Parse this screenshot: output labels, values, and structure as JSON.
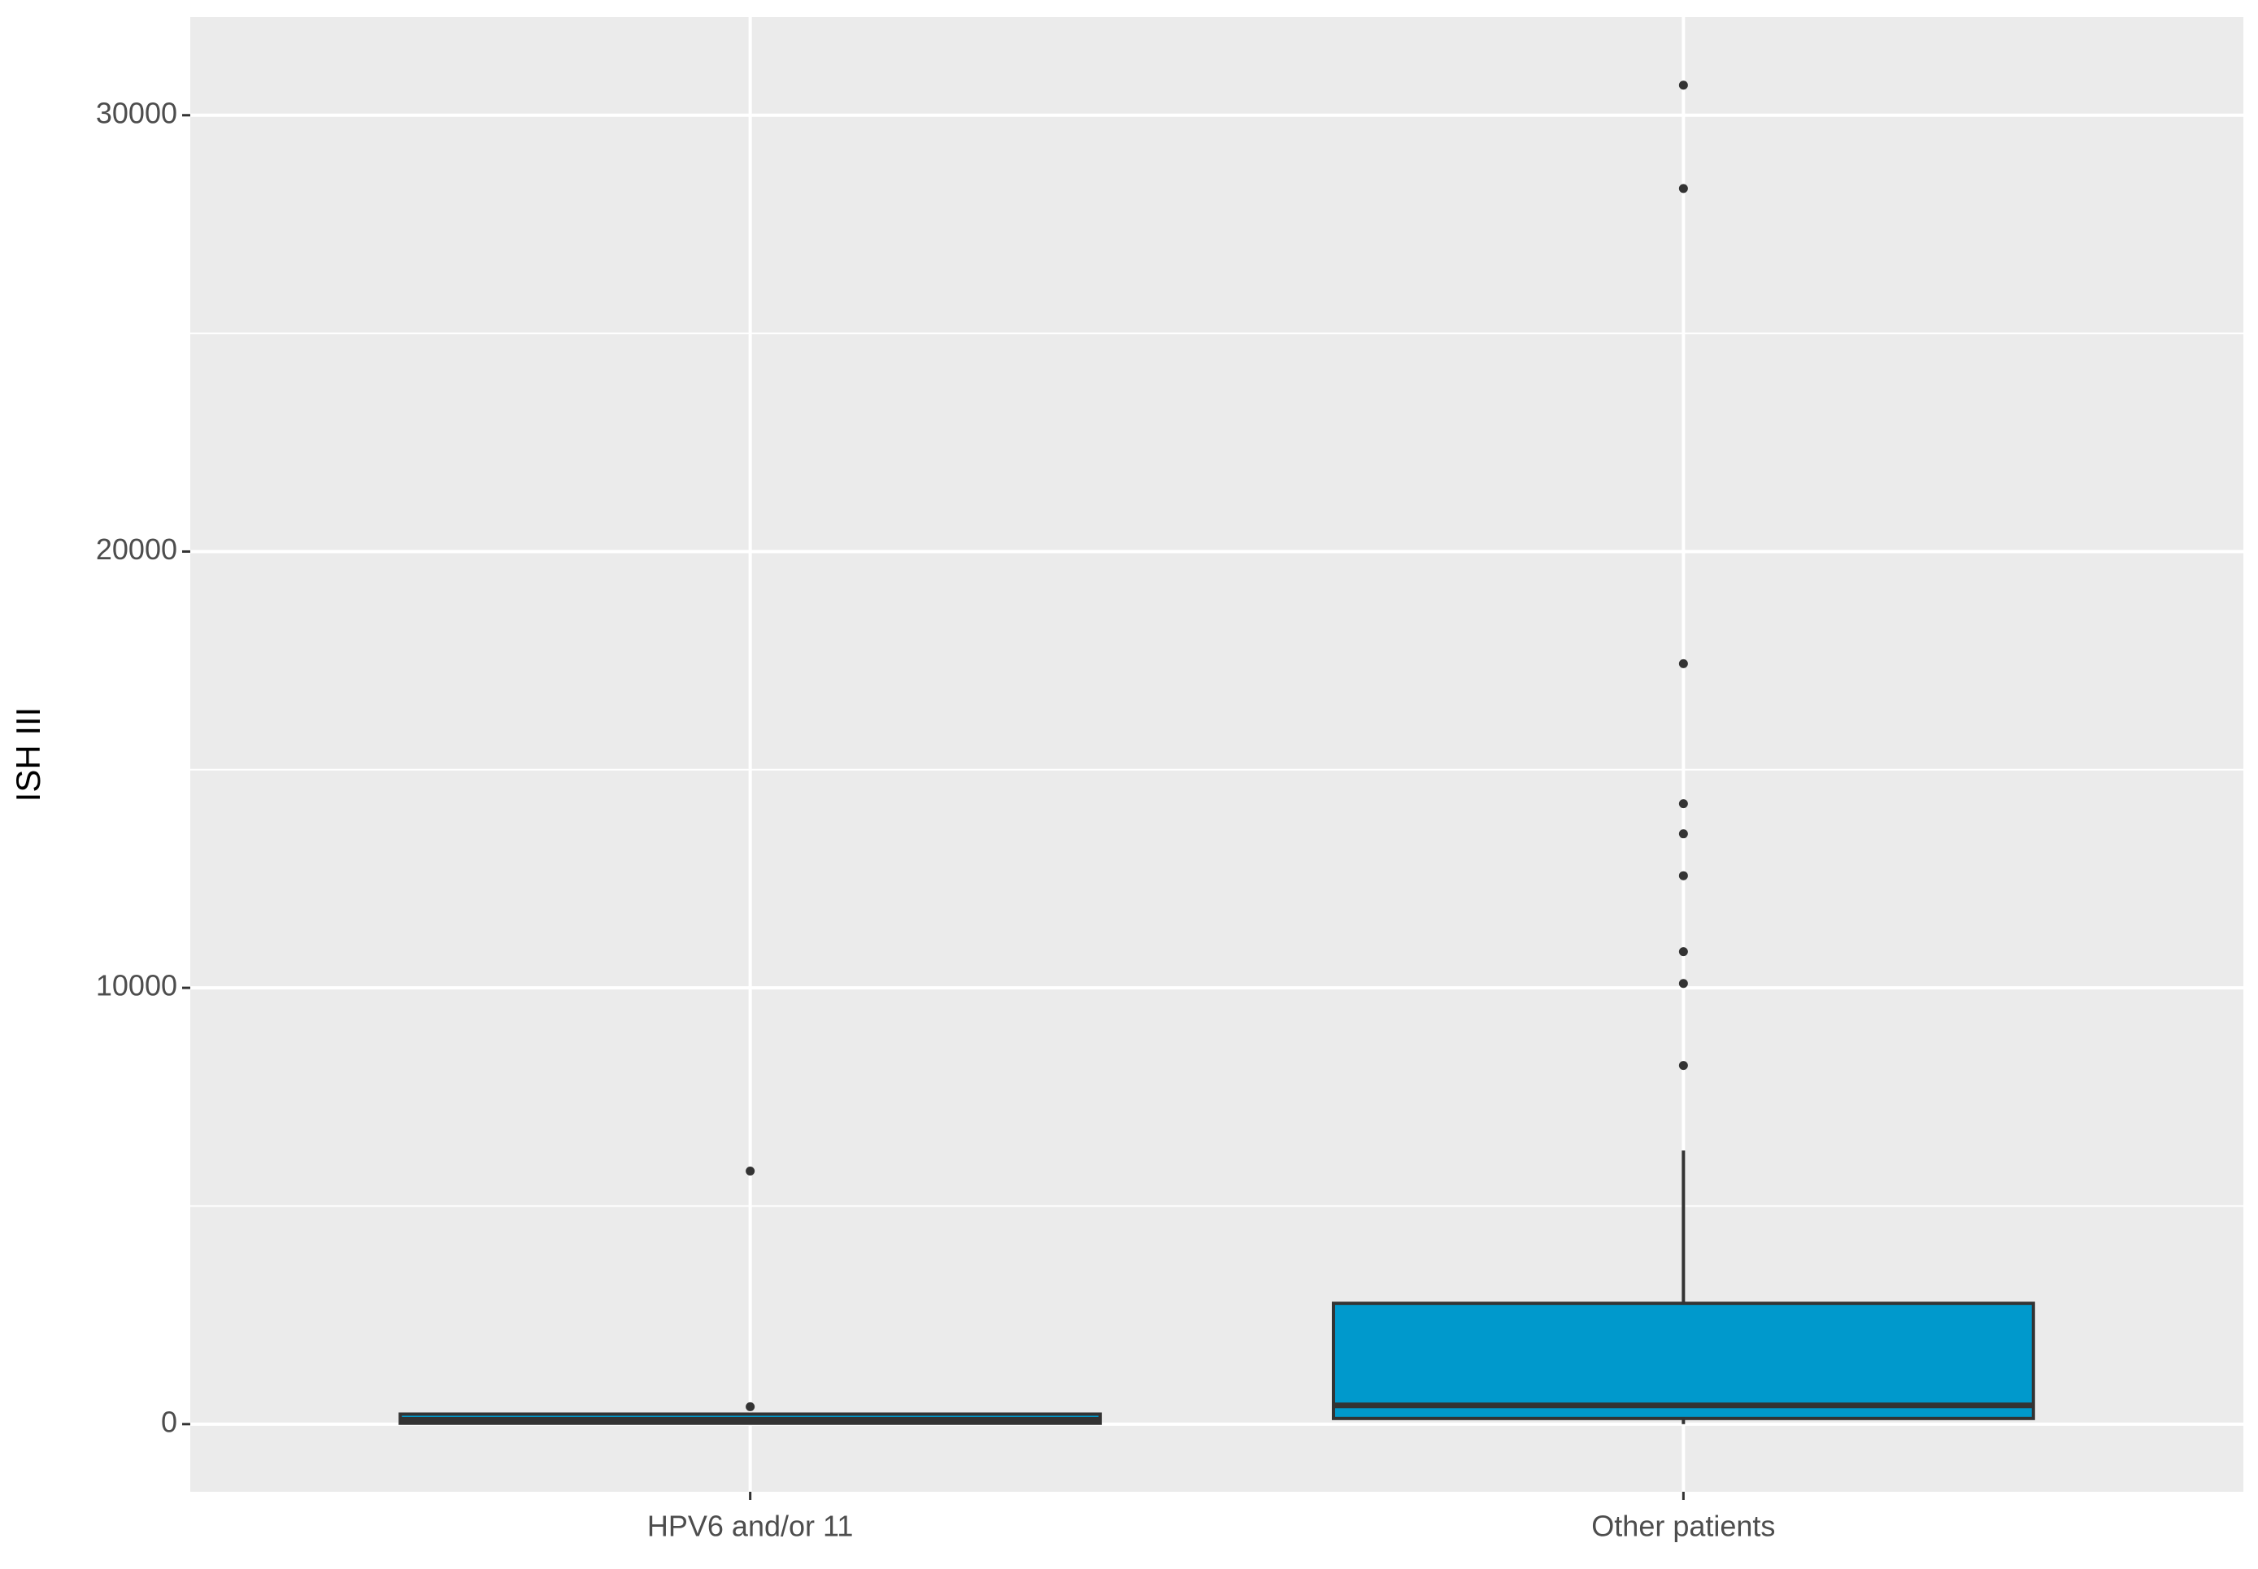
{
  "chart_data": {
    "type": "box",
    "y_label": "ISH III",
    "categories": [
      "HPV6 and/or 11",
      "Other patients"
    ],
    "boxes": [
      {
        "min": 0,
        "q1": 20,
        "median": 100,
        "q3": 230,
        "max": 230,
        "outliers": [
          5800,
          400
        ]
      },
      {
        "min": 0,
        "q1": 130,
        "median": 430,
        "q3": 2770,
        "max": 6270,
        "outliers": [
          30690,
          28320,
          17430,
          14220,
          13530,
          12570,
          10830,
          10100,
          8220
        ]
      }
    ],
    "color": "#0099cc",
    "ylim": [
      -1550,
      32250
    ],
    "yticks": [
      0,
      10000,
      20000,
      30000
    ],
    "y_minor_ticks": [
      5000,
      15000,
      25000
    ],
    "grid": true
  }
}
